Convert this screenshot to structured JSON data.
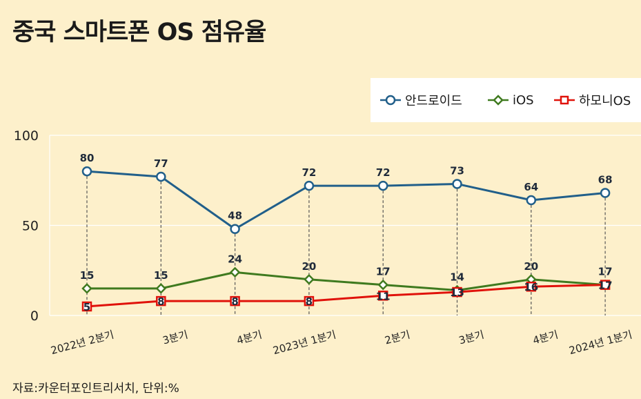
{
  "title": "중국 스마트폰 OS 점유율",
  "source": "자료:카운터포인트리서치, 단위:%",
  "legend": [
    {
      "name": "안드로이드",
      "color": "#215f8a",
      "marker": "circle"
    },
    {
      "name": "iOS",
      "color": "#3f7a1f",
      "marker": "diamond"
    },
    {
      "name": "하모니OS",
      "color": "#e0120a",
      "marker": "square"
    }
  ],
  "chart_data": {
    "type": "line",
    "categories": [
      "2022년 2분기",
      "3분기",
      "4분기",
      "2023년 1분기",
      "2분기",
      "3분기",
      "4분기",
      "2024년 1분기"
    ],
    "series": [
      {
        "name": "안드로이드",
        "values": [
          80,
          77,
          48,
          72,
          72,
          73,
          64,
          68
        ]
      },
      {
        "name": "iOS",
        "values": [
          15,
          15,
          24,
          20,
          17,
          14,
          20,
          17
        ]
      },
      {
        "name": "하모니OS",
        "values": [
          5,
          8,
          8,
          8,
          11,
          13,
          16,
          17
        ]
      }
    ],
    "ylim": [
      0,
      100
    ],
    "yticks": [
      0,
      50,
      100
    ],
    "unit": "%",
    "grid": true,
    "legend_position": "top-right"
  }
}
